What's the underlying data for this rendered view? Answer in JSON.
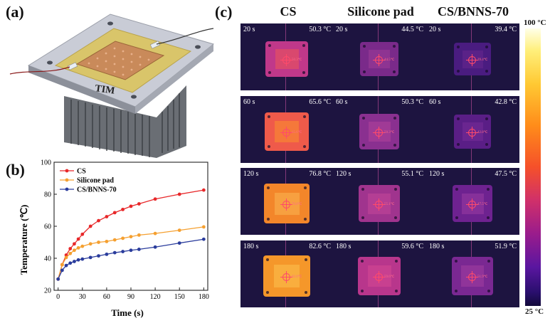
{
  "labels": {
    "a": "(a)",
    "b": "(b)",
    "c": "(c)"
  },
  "panel_a": {
    "tim_label": "TIM"
  },
  "chart_data": {
    "type": "line",
    "xlabel": "Time (s)",
    "ylabel": "Temperature (℃)",
    "xlim": [
      -5,
      185
    ],
    "ylim": [
      20,
      100
    ],
    "xticks": [
      0,
      30,
      60,
      90,
      120,
      150,
      180
    ],
    "yticks": [
      20,
      40,
      60,
      80,
      100
    ],
    "legend_position": "top-left",
    "series": [
      {
        "name": "CS",
        "color": "#e8282a",
        "x": [
          0,
          5,
          10,
          15,
          20,
          25,
          30,
          40,
          50,
          60,
          70,
          80,
          90,
          100,
          120,
          150,
          180
        ],
        "y": [
          27,
          36,
          42,
          46,
          49,
          52,
          55,
          60,
          63.5,
          66,
          68.5,
          70.5,
          72.5,
          74,
          77,
          80,
          82.6
        ]
      },
      {
        "name": "Silicone pad",
        "color": "#f5a030",
        "x": [
          0,
          5,
          10,
          15,
          20,
          25,
          30,
          40,
          50,
          60,
          70,
          80,
          90,
          100,
          120,
          150,
          180
        ],
        "y": [
          27,
          36,
          40.5,
          43,
          45,
          46.5,
          47.5,
          49,
          50,
          50.5,
          51.5,
          52.5,
          53.5,
          54.5,
          55.5,
          57.5,
          59.6
        ]
      },
      {
        "name": "CS/BNNS-70",
        "color": "#2a3c9c",
        "x": [
          0,
          5,
          10,
          15,
          20,
          25,
          30,
          40,
          50,
          60,
          70,
          80,
          90,
          100,
          120,
          150,
          180
        ],
        "y": [
          27,
          32.5,
          35.5,
          37,
          38,
          39,
          39.5,
          40.5,
          41.5,
          42.5,
          43.5,
          44.2,
          45,
          45.6,
          47,
          49.5,
          51.9
        ]
      }
    ]
  },
  "thermal": {
    "columns": [
      "CS",
      "Silicone pad",
      "CS/BNNS-70"
    ],
    "times": [
      "20 s",
      "60 s",
      "120 s",
      "180 s"
    ],
    "temps": [
      [
        "50.3 °C",
        "44.5 °C",
        "39.4 °C"
      ],
      [
        "65.6 °C",
        "50.3 °C",
        "42.8 °C"
      ],
      [
        "76.8 °C",
        "55.1 °C",
        "47.5 °C"
      ],
      [
        "82.6 °C",
        "59.6 °C",
        "51.9 °C"
      ]
    ],
    "point_labels": [
      [
        "50.3℃",
        "44.5℃",
        "39.4℃"
      ],
      [
        "65.6℃",
        "50.3℃",
        "42.8℃"
      ],
      [
        "76.8℃",
        "55.1℃",
        "47.5℃"
      ],
      [
        "82.6℃",
        "59.6℃",
        "51.9℃"
      ]
    ],
    "colorbar_max": "100 °C",
    "colorbar_min": "25 °C",
    "plate_colors": [
      [
        "#c0388a",
        "#7a2a8a",
        "#4a1c80"
      ],
      [
        "#ef5a4a",
        "#8a3090",
        "#5a1e86"
      ],
      [
        "#f3862a",
        "#a0348e",
        "#6e2290"
      ],
      [
        "#f5972a",
        "#b8368c",
        "#7a2892"
      ]
    ],
    "core_colors": [
      [
        "#d9486e",
        "#8e3492",
        "#5a2288"
      ],
      [
        "#f5783a",
        "#a03a96",
        "#6a2690"
      ],
      [
        "#f7a040",
        "#b43e94",
        "#86309a"
      ],
      [
        "#f9ae3e",
        "#c84090",
        "#90349a"
      ]
    ]
  }
}
